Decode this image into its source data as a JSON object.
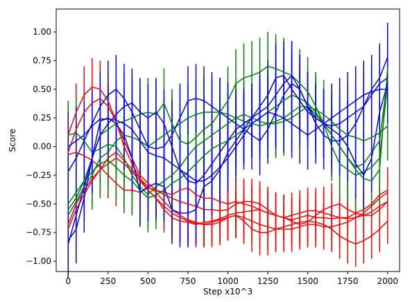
{
  "chart_data": {
    "type": "line",
    "title": "",
    "xlabel": "Step x10^3",
    "ylabel": "Score",
    "xlim": [
      -75,
      2075
    ],
    "ylim": [
      -1.09,
      1.2
    ],
    "xticks": [
      0,
      250,
      500,
      750,
      1000,
      1250,
      1500,
      1750,
      2000
    ],
    "yticks": [
      -1.0,
      -0.75,
      -0.5,
      -0.25,
      0.0,
      0.25,
      0.5,
      0.75,
      1.0
    ],
    "xtick_labels": [
      "0",
      "250",
      "500",
      "750",
      "1000",
      "1250",
      "1500",
      "1750",
      "2000"
    ],
    "ytick_labels": [
      "−1.00",
      "−0.75",
      "−0.50",
      "−0.25",
      "0.00",
      "0.25",
      "0.50",
      "0.75",
      "1.00"
    ],
    "x": [
      0,
      50,
      100,
      150,
      200,
      250,
      300,
      350,
      400,
      450,
      500,
      550,
      600,
      650,
      700,
      750,
      800,
      850,
      900,
      950,
      1000,
      1050,
      1100,
      1150,
      1200,
      1250,
      1300,
      1350,
      1400,
      1450,
      1500,
      1550,
      1600,
      1650,
      1700,
      1750,
      1800,
      1850,
      1900,
      1950,
      2000
    ],
    "series": [
      {
        "color": "#ff0000",
        "values": [
          0.1,
          0.3,
          0.45,
          0.52,
          0.5,
          0.4,
          0.22,
          0.0,
          -0.15,
          -0.28,
          -0.38,
          -0.45,
          -0.55,
          -0.62,
          -0.65,
          -0.66,
          -0.68,
          -0.66,
          -0.65,
          -0.63,
          -0.6,
          -0.58,
          -0.57,
          -0.56,
          -0.55,
          -0.58,
          -0.6,
          -0.62,
          -0.6,
          -0.58,
          -0.56,
          -0.56,
          -0.58,
          -0.6,
          -0.62,
          -0.63,
          -0.62,
          -0.6,
          -0.57,
          -0.52,
          -0.48
        ],
        "err": [
          0.25,
          0.25,
          0.25,
          0.25,
          0.25,
          0.25,
          0.2,
          0.2,
          0.2,
          0.2,
          0.2,
          0.2,
          0.2,
          0.2,
          0.2,
          0.2,
          0.2,
          0.2,
          0.2,
          0.2,
          0.2,
          0.2,
          0.2,
          0.2,
          0.2,
          0.2,
          0.2,
          0.2,
          0.2,
          0.2,
          0.2,
          0.2,
          0.2,
          0.2,
          0.2,
          0.2,
          0.2,
          0.2,
          0.2,
          0.2,
          0.2
        ]
      },
      {
        "color": "#ff0000",
        "values": [
          -0.05,
          0.15,
          0.3,
          0.38,
          0.42,
          0.35,
          0.22,
          0.05,
          -0.1,
          -0.25,
          -0.32,
          -0.38,
          -0.42,
          -0.45,
          -0.48,
          -0.5,
          -0.52,
          -0.55,
          -0.55,
          -0.56,
          -0.55,
          -0.5,
          -0.48,
          -0.48,
          -0.5,
          -0.55,
          -0.6,
          -0.62,
          -0.65,
          -0.68,
          -0.66,
          -0.6,
          -0.55,
          -0.52,
          -0.5,
          -0.55,
          -0.58,
          -0.6,
          -0.6,
          -0.55,
          -0.48
        ],
        "err": [
          0.2,
          0.2,
          0.2,
          0.2,
          0.2,
          0.2,
          0.2,
          0.2,
          0.2,
          0.2,
          0.2,
          0.2,
          0.2,
          0.2,
          0.2,
          0.2,
          0.2,
          0.2,
          0.2,
          0.2,
          0.2,
          0.2,
          0.2,
          0.2,
          0.2,
          0.2,
          0.2,
          0.2,
          0.2,
          0.2,
          0.2,
          0.2,
          0.2,
          0.2,
          0.2,
          0.2,
          0.2,
          0.2,
          0.2,
          0.2,
          0.2
        ]
      },
      {
        "color": "#ff0000",
        "values": [
          -0.07,
          -0.05,
          -0.08,
          -0.12,
          -0.18,
          -0.25,
          -0.32,
          -0.38,
          -0.38,
          -0.4,
          -0.36,
          -0.38,
          -0.4,
          -0.42,
          -0.38,
          -0.36,
          -0.42,
          -0.45,
          -0.45,
          -0.48,
          -0.5,
          -0.48,
          -0.5,
          -0.52,
          -0.55,
          -0.58,
          -0.6,
          -0.62,
          -0.64,
          -0.62,
          -0.6,
          -0.62,
          -0.62,
          -0.63,
          -0.62,
          -0.62,
          -0.58,
          -0.55,
          -0.5,
          -0.42,
          -0.38
        ],
        "err": [
          0.2,
          0.2,
          0.2,
          0.2,
          0.2,
          0.2,
          0.2,
          0.2,
          0.2,
          0.2,
          0.2,
          0.2,
          0.2,
          0.2,
          0.2,
          0.2,
          0.2,
          0.2,
          0.2,
          0.2,
          0.2,
          0.2,
          0.2,
          0.2,
          0.2,
          0.2,
          0.2,
          0.2,
          0.2,
          0.2,
          0.2,
          0.2,
          0.2,
          0.2,
          0.2,
          0.2,
          0.2,
          0.2,
          0.2,
          0.2,
          0.2
        ]
      },
      {
        "color": "#ff0000",
        "values": [
          -0.72,
          -0.55,
          -0.42,
          -0.3,
          -0.2,
          -0.1,
          -0.05,
          -0.12,
          -0.2,
          -0.28,
          -0.35,
          -0.4,
          -0.48,
          -0.55,
          -0.6,
          -0.64,
          -0.66,
          -0.68,
          -0.68,
          -0.66,
          -0.62,
          -0.6,
          -0.65,
          -0.72,
          -0.75,
          -0.75,
          -0.72,
          -0.7,
          -0.68,
          -0.66,
          -0.65,
          -0.66,
          -0.68,
          -0.72,
          -0.78,
          -0.82,
          -0.85,
          -0.82,
          -0.78,
          -0.72,
          -0.65
        ],
        "err": [
          0.2,
          0.2,
          0.2,
          0.2,
          0.2,
          0.2,
          0.2,
          0.2,
          0.2,
          0.2,
          0.2,
          0.2,
          0.2,
          0.2,
          0.2,
          0.2,
          0.2,
          0.2,
          0.2,
          0.2,
          0.2,
          0.2,
          0.2,
          0.2,
          0.2,
          0.2,
          0.2,
          0.2,
          0.2,
          0.2,
          0.2,
          0.2,
          0.2,
          0.2,
          0.2,
          0.2,
          0.2,
          0.2,
          0.2,
          0.2,
          0.2
        ]
      },
      {
        "color": "#ff0000",
        "values": [
          -0.68,
          -0.5,
          -0.38,
          -0.28,
          -0.2,
          -0.15,
          -0.1,
          -0.15,
          -0.22,
          -0.3,
          -0.38,
          -0.45,
          -0.52,
          -0.58,
          -0.62,
          -0.65,
          -0.67,
          -0.68,
          -0.66,
          -0.64,
          -0.62,
          -0.6,
          -0.62,
          -0.65,
          -0.68,
          -0.7,
          -0.72,
          -0.72,
          -0.72,
          -0.7,
          -0.68,
          -0.68,
          -0.7,
          -0.7,
          -0.68,
          -0.66,
          -0.62,
          -0.58,
          -0.52,
          -0.45,
          -0.4
        ],
        "err": [
          0.2,
          0.2,
          0.2,
          0.2,
          0.2,
          0.2,
          0.2,
          0.2,
          0.2,
          0.2,
          0.2,
          0.2,
          0.2,
          0.2,
          0.2,
          0.2,
          0.2,
          0.2,
          0.2,
          0.2,
          0.2,
          0.2,
          0.2,
          0.2,
          0.2,
          0.2,
          0.2,
          0.2,
          0.2,
          0.2,
          0.2,
          0.2,
          0.2,
          0.2,
          0.2,
          0.2,
          0.2,
          0.2,
          0.2,
          0.2,
          0.2
        ]
      },
      {
        "color": "#008000",
        "values": [
          0.1,
          0.12,
          0.05,
          -0.05,
          -0.02,
          0.02,
          0.0,
          -0.1,
          -0.25,
          -0.35,
          -0.42,
          -0.35,
          -0.3,
          -0.25,
          -0.18,
          -0.08,
          0.0,
          0.05,
          0.1,
          0.15,
          0.2,
          0.25,
          0.28,
          0.25,
          0.22,
          0.2,
          0.2,
          0.22,
          0.25,
          0.3,
          0.35,
          0.32,
          0.28,
          0.22,
          0.15,
          0.1,
          0.08,
          0.05,
          0.08,
          0.12,
          0.18
        ],
        "err": [
          0.3,
          0.3,
          0.3,
          0.3,
          0.3,
          0.3,
          0.3,
          0.3,
          0.3,
          0.3,
          0.3,
          0.3,
          0.3,
          0.3,
          0.3,
          0.3,
          0.3,
          0.3,
          0.3,
          0.3,
          0.3,
          0.3,
          0.3,
          0.3,
          0.3,
          0.3,
          0.3,
          0.3,
          0.3,
          0.3,
          0.3,
          0.3,
          0.3,
          0.3,
          0.3,
          0.3,
          0.3,
          0.3,
          0.3,
          0.3,
          0.3
        ]
      },
      {
        "color": "#008000",
        "values": [
          -0.55,
          -0.45,
          -0.3,
          -0.1,
          0.1,
          0.15,
          0.2,
          0.22,
          0.25,
          0.28,
          0.3,
          0.28,
          0.38,
          0.2,
          0.05,
          0.02,
          0.08,
          0.15,
          0.2,
          0.3,
          0.4,
          0.55,
          0.6,
          0.62,
          0.65,
          0.7,
          0.68,
          0.65,
          0.62,
          0.55,
          0.48,
          0.35,
          0.2,
          0.0,
          -0.15,
          -0.2,
          -0.25,
          -0.22,
          -0.18,
          -0.1,
          0.55
        ],
        "err": [
          0.3,
          0.3,
          0.3,
          0.3,
          0.3,
          0.3,
          0.3,
          0.3,
          0.3,
          0.3,
          0.3,
          0.3,
          0.3,
          0.3,
          0.3,
          0.3,
          0.3,
          0.3,
          0.3,
          0.3,
          0.3,
          0.3,
          0.3,
          0.3,
          0.3,
          0.3,
          0.3,
          0.3,
          0.3,
          0.3,
          0.3,
          0.3,
          0.3,
          0.3,
          0.3,
          0.3,
          0.3,
          0.3,
          0.3,
          0.3,
          0.3
        ]
      },
      {
        "color": "#008000",
        "values": [
          -0.6,
          -0.48,
          -0.35,
          -0.25,
          -0.1,
          -0.05,
          0.05,
          0.1,
          0.08,
          0.05,
          0.0,
          0.05,
          0.1,
          0.15,
          0.2,
          0.25,
          0.28,
          0.3,
          0.3,
          0.3,
          0.28,
          0.25,
          0.22,
          0.2,
          0.18,
          0.2,
          0.22,
          0.25,
          0.3,
          0.35,
          0.35,
          0.28,
          0.2,
          0.1,
          0.0,
          -0.1,
          -0.18,
          -0.15,
          -0.05,
          0.05,
          0.6
        ],
        "err": [
          0.3,
          0.3,
          0.3,
          0.3,
          0.3,
          0.3,
          0.3,
          0.3,
          0.3,
          0.3,
          0.3,
          0.3,
          0.3,
          0.3,
          0.3,
          0.3,
          0.3,
          0.3,
          0.3,
          0.3,
          0.3,
          0.3,
          0.3,
          0.3,
          0.3,
          0.3,
          0.3,
          0.3,
          0.3,
          0.3,
          0.3,
          0.3,
          0.3,
          0.3,
          0.3,
          0.3,
          0.3,
          0.3,
          0.3,
          0.3,
          0.3
        ]
      },
      {
        "color": "#008000",
        "values": [
          -0.5,
          -0.4,
          -0.3,
          -0.22,
          -0.15,
          -0.12,
          -0.18,
          -0.25,
          -0.3,
          -0.38,
          -0.45,
          -0.42,
          -0.38,
          -0.32,
          -0.28,
          -0.22,
          -0.15,
          -0.08,
          -0.02,
          0.02,
          0.05,
          0.1,
          0.15,
          0.2,
          0.25,
          0.3,
          0.35,
          0.4,
          0.45,
          0.42,
          0.38,
          0.3,
          0.2,
          0.1,
          0.0,
          -0.1,
          -0.2,
          -0.28,
          -0.3,
          -0.2,
          0.68
        ],
        "err": [
          0.3,
          0.3,
          0.3,
          0.3,
          0.3,
          0.3,
          0.3,
          0.3,
          0.3,
          0.3,
          0.3,
          0.3,
          0.3,
          0.3,
          0.3,
          0.3,
          0.3,
          0.3,
          0.3,
          0.3,
          0.3,
          0.3,
          0.3,
          0.3,
          0.3,
          0.3,
          0.3,
          0.3,
          0.3,
          0.3,
          0.3,
          0.3,
          0.3,
          0.3,
          0.3,
          0.3,
          0.3,
          0.3,
          0.3,
          0.3,
          0.3
        ]
      },
      {
        "color": "#0000ff",
        "values": [
          -0.22,
          -0.1,
          0.05,
          0.2,
          0.35,
          0.45,
          0.5,
          0.42,
          0.3,
          0.15,
          0.0,
          -0.02,
          0.0,
          0.1,
          0.25,
          0.4,
          0.42,
          0.4,
          0.35,
          0.3,
          0.25,
          0.2,
          0.15,
          0.1,
          0.05,
          0.15,
          0.3,
          0.45,
          0.55,
          0.5,
          0.35,
          0.2,
          0.1,
          0.05,
          0.05,
          0.1,
          0.2,
          0.35,
          0.5,
          0.6,
          0.78
        ],
        "err": [
          0.3,
          0.3,
          0.3,
          0.3,
          0.3,
          0.3,
          0.3,
          0.3,
          0.3,
          0.3,
          0.3,
          0.3,
          0.3,
          0.3,
          0.3,
          0.3,
          0.3,
          0.3,
          0.3,
          0.3,
          0.3,
          0.3,
          0.3,
          0.3,
          0.3,
          0.3,
          0.3,
          0.3,
          0.3,
          0.3,
          0.3,
          0.3,
          0.3,
          0.3,
          0.3,
          0.3,
          0.3,
          0.3,
          0.3,
          0.3,
          0.3
        ]
      },
      {
        "color": "#0000ff",
        "values": [
          0.0,
          0.05,
          0.1,
          0.18,
          0.24,
          0.24,
          0.23,
          0.2,
          0.15,
          0.05,
          -0.05,
          -0.08,
          -0.1,
          -0.15,
          -0.2,
          -0.25,
          -0.3,
          -0.3,
          -0.25,
          -0.18,
          -0.1,
          0.0,
          0.1,
          0.2,
          0.25,
          0.3,
          0.28,
          0.25,
          0.2,
          0.15,
          0.1,
          0.15,
          0.2,
          0.25,
          0.3,
          0.35,
          0.4,
          0.45,
          0.48,
          0.5,
          0.5
        ],
        "err": [
          0.3,
          0.3,
          0.3,
          0.3,
          0.3,
          0.3,
          0.3,
          0.3,
          0.3,
          0.3,
          0.3,
          0.3,
          0.3,
          0.3,
          0.3,
          0.3,
          0.3,
          0.3,
          0.3,
          0.3,
          0.3,
          0.3,
          0.3,
          0.3,
          0.3,
          0.3,
          0.3,
          0.3,
          0.3,
          0.3,
          0.3,
          0.3,
          0.3,
          0.3,
          0.3,
          0.3,
          0.3,
          0.3,
          0.3,
          0.3,
          0.3
        ]
      },
      {
        "color": "#0000ff",
        "values": [
          -0.82,
          -0.72,
          -0.45,
          -0.1,
          0.22,
          0.25,
          0.2,
          0.1,
          -0.1,
          -0.4,
          -0.35,
          -0.32,
          -0.35,
          -0.55,
          -0.58,
          -0.58,
          -0.55,
          -0.35,
          -0.3,
          -0.2,
          -0.05,
          0.05,
          0.15,
          0.25,
          0.35,
          0.45,
          0.6,
          0.62,
          0.5,
          0.4,
          0.3,
          0.25,
          0.2,
          0.15,
          0.1,
          0.0,
          -0.15,
          -0.25,
          -0.1,
          0.3,
          0.55
        ],
        "err": [
          0.3,
          0.3,
          0.3,
          0.3,
          0.3,
          0.3,
          0.3,
          0.3,
          0.3,
          0.3,
          0.3,
          0.3,
          0.3,
          0.3,
          0.3,
          0.3,
          0.3,
          0.3,
          0.3,
          0.3,
          0.3,
          0.3,
          0.3,
          0.3,
          0.3,
          0.3,
          0.3,
          0.3,
          0.3,
          0.3,
          0.3,
          0.3,
          0.3,
          0.3,
          0.3,
          0.3,
          0.3,
          0.3,
          0.3,
          0.3,
          0.3
        ]
      },
      {
        "color": "#0000ff",
        "values": [
          -0.85,
          -0.6,
          -0.35,
          -0.1,
          0.1,
          0.2,
          0.28,
          0.35,
          0.38,
          0.3,
          0.25,
          0.3,
          0.2,
          0.0,
          -0.2,
          -0.3,
          -0.32,
          -0.25,
          -0.15,
          -0.05,
          0.05,
          0.15,
          0.2,
          0.25,
          0.3,
          0.35,
          0.45,
          0.55,
          0.62,
          0.5,
          0.35,
          0.25,
          0.2,
          0.18,
          0.2,
          0.25,
          0.3,
          0.35,
          0.45,
          0.55,
          0.6
        ],
        "err": [
          0.3,
          0.3,
          0.3,
          0.3,
          0.3,
          0.3,
          0.3,
          0.3,
          0.3,
          0.3,
          0.3,
          0.3,
          0.3,
          0.3,
          0.3,
          0.3,
          0.3,
          0.3,
          0.3,
          0.3,
          0.3,
          0.3,
          0.3,
          0.3,
          0.3,
          0.3,
          0.3,
          0.3,
          0.3,
          0.3,
          0.3,
          0.3,
          0.3,
          0.3,
          0.3,
          0.3,
          0.3,
          0.3,
          0.3,
          0.3,
          0.3
        ]
      }
    ]
  }
}
